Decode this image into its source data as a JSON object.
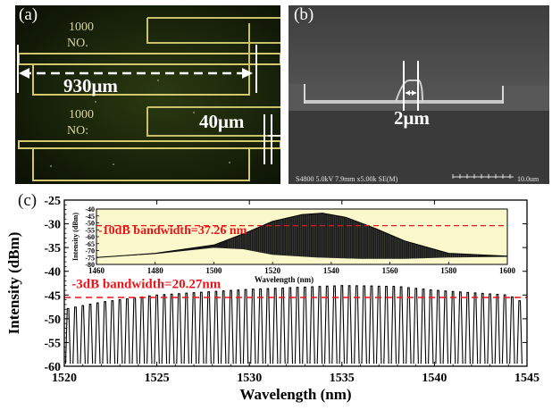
{
  "panels": {
    "a": {
      "label": "(a)",
      "chip_label": "1000\nNO.",
      "length_annotation": "930μm",
      "width_annotation": "40μm"
    },
    "b": {
      "label": "(b)",
      "width_annotation": "2μm",
      "sem_info": "S4800 5.0kV 7.9mm x5.00k SE(M)",
      "scale_bar_label": "10.0um"
    },
    "c": {
      "label": "(c)"
    }
  },
  "chart_data": [
    {
      "type": "line",
      "panel": "c-main",
      "xlabel": "Wavelength (nm)",
      "ylabel": "Intensity (dBm)",
      "xlim": [
        1520,
        1545
      ],
      "ylim": [
        -60,
        -25
      ],
      "xticks": [
        1520,
        1525,
        1530,
        1535,
        1540,
        1545
      ],
      "yticks": [
        -60,
        -55,
        -50,
        -45,
        -40,
        -35,
        -30,
        -25
      ],
      "annotation": "-3dB bandwidth=20.27nm",
      "reference_level_dBm": -45.5,
      "comb": {
        "start_nm": 1520.2,
        "spacing_nm": 0.4,
        "line_count": 62,
        "floor_dBm": -59.5,
        "envelope": [
          {
            "x": 1520,
            "y": -48.0
          },
          {
            "x": 1522,
            "y": -46.5
          },
          {
            "x": 1525,
            "y": -45.0
          },
          {
            "x": 1530,
            "y": -43.8
          },
          {
            "x": 1535,
            "y": -43.0
          },
          {
            "x": 1538,
            "y": -43.2
          },
          {
            "x": 1540,
            "y": -44.0
          },
          {
            "x": 1542,
            "y": -44.5
          },
          {
            "x": 1544,
            "y": -45.0
          },
          {
            "x": 1545,
            "y": -47.0
          }
        ]
      }
    },
    {
      "type": "area",
      "panel": "c-inset",
      "xlabel": "Wavelength (nm)",
      "ylabel": "Intensity (dBm)",
      "xlim": [
        1460,
        1600
      ],
      "ylim": [
        -80,
        -40
      ],
      "xticks": [
        1460,
        1480,
        1500,
        1520,
        1540,
        1560,
        1580,
        1600
      ],
      "yticks": [
        -80,
        -75,
        -70,
        -65,
        -60,
        -55,
        -50,
        -45,
        -40
      ],
      "annotation": "-10dB bandwidth=37.26 nm",
      "reference_level_dBm": -52,
      "background": "#fbf8cc",
      "upper_envelope": [
        {
          "x": 1460,
          "y": -75
        },
        {
          "x": 1480,
          "y": -72
        },
        {
          "x": 1500,
          "y": -66
        },
        {
          "x": 1510,
          "y": -58
        },
        {
          "x": 1520,
          "y": -49
        },
        {
          "x": 1530,
          "y": -44
        },
        {
          "x": 1537,
          "y": -43
        },
        {
          "x": 1545,
          "y": -46
        },
        {
          "x": 1555,
          "y": -54
        },
        {
          "x": 1565,
          "y": -63
        },
        {
          "x": 1580,
          "y": -72
        },
        {
          "x": 1600,
          "y": -74
        }
      ],
      "lower_envelope": [
        {
          "x": 1460,
          "y": -75
        },
        {
          "x": 1480,
          "y": -72.5
        },
        {
          "x": 1500,
          "y": -68
        },
        {
          "x": 1510,
          "y": -69
        },
        {
          "x": 1520,
          "y": -73
        },
        {
          "x": 1535,
          "y": -75
        },
        {
          "x": 1550,
          "y": -76
        },
        {
          "x": 1565,
          "y": -76
        },
        {
          "x": 1580,
          "y": -75
        },
        {
          "x": 1600,
          "y": -74.5
        }
      ]
    }
  ],
  "colors": {
    "annotation_red": "#e8141b",
    "trace": "#000000",
    "inset_bg": "#fbf8cc"
  }
}
